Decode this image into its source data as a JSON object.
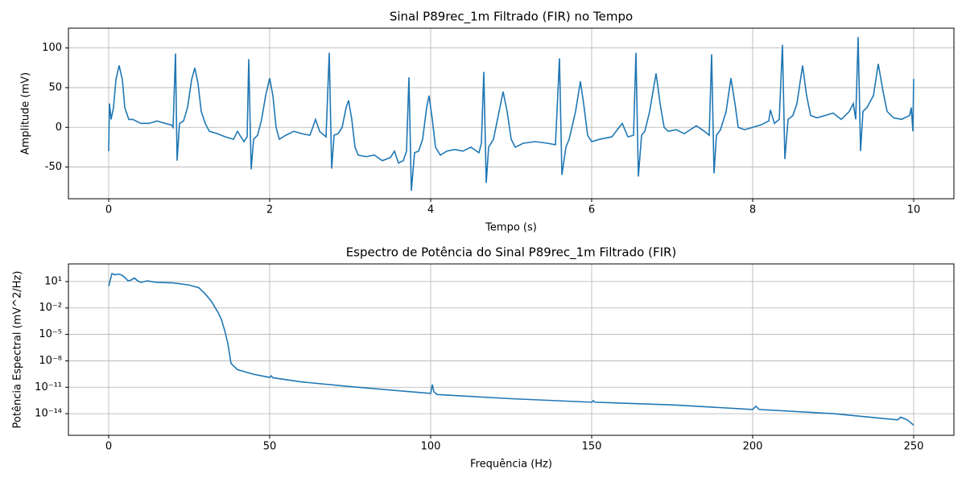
{
  "chart_data": [
    {
      "type": "line",
      "title": "Sinal P89rec_1m Filtrado (FIR) no Tempo",
      "x_label": "Tempo (s)",
      "y_label": "Amplitude (mV)",
      "xlim": [
        -0.5,
        10.5
      ],
      "ylim": [
        -90,
        125
      ],
      "xticks": [
        0,
        2,
        4,
        6,
        8,
        10
      ],
      "yticks": [
        -50,
        0,
        50,
        100
      ],
      "grid": true,
      "log_y": false,
      "series": [
        {
          "color": "#1f77b4",
          "x": [
            0,
            0.01,
            0.03,
            0.06,
            0.09,
            0.13,
            0.17,
            0.2,
            0.25,
            0.3,
            0.4,
            0.5,
            0.6,
            0.7,
            0.78,
            0.8,
            0.83,
            0.85,
            0.88,
            0.93,
            0.98,
            1.03,
            1.07,
            1.11,
            1.15,
            1.2,
            1.25,
            1.35,
            1.45,
            1.55,
            1.6,
            1.68,
            1.72,
            1.74,
            1.77,
            1.8,
            1.85,
            1.9,
            1.95,
            2.0,
            2.04,
            2.08,
            2.12,
            2.2,
            2.3,
            2.4,
            2.5,
            2.57,
            2.62,
            2.7,
            2.74,
            2.77,
            2.8,
            2.85,
            2.9,
            2.95,
            2.98,
            3.02,
            3.06,
            3.1,
            3.2,
            3.3,
            3.4,
            3.5,
            3.55,
            3.6,
            3.66,
            3.7,
            3.73,
            3.76,
            3.8,
            3.85,
            3.9,
            3.95,
            3.98,
            4.02,
            4.06,
            4.12,
            4.2,
            4.3,
            4.4,
            4.5,
            4.6,
            4.63,
            4.66,
            4.69,
            4.72,
            4.78,
            4.85,
            4.9,
            4.95,
            5.0,
            5.05,
            5.15,
            5.3,
            5.45,
            5.55,
            5.6,
            5.63,
            5.68,
            5.72,
            5.8,
            5.86,
            5.9,
            5.95,
            6.0,
            6.1,
            6.25,
            6.38,
            6.45,
            6.52,
            6.55,
            6.58,
            6.62,
            6.66,
            6.72,
            6.8,
            6.85,
            6.9,
            6.95,
            7.05,
            7.15,
            7.3,
            7.4,
            7.46,
            7.49,
            7.52,
            7.55,
            7.6,
            7.67,
            7.73,
            7.78,
            7.82,
            7.9,
            8.0,
            8.1,
            8.2,
            8.22,
            8.27,
            8.33,
            8.37,
            8.4,
            8.44,
            8.5,
            8.55,
            8.62,
            8.67,
            8.72,
            8.8,
            8.9,
            9.0,
            9.1,
            9.2,
            9.25,
            9.28,
            9.31,
            9.34,
            9.37,
            9.42,
            9.5,
            9.56,
            9.62,
            9.67,
            9.75,
            9.85,
            9.95,
            9.97,
            9.99,
            10.0
          ],
          "values": [
            -30,
            30,
            10,
            25,
            60,
            78,
            60,
            25,
            10,
            10,
            5,
            5,
            8,
            5,
            3,
            0,
            93,
            -42,
            5,
            8,
            25,
            60,
            75,
            55,
            20,
            5,
            -5,
            -8,
            -12,
            -15,
            -5,
            -18,
            -12,
            86,
            -53,
            -15,
            -10,
            10,
            40,
            62,
            40,
            0,
            -15,
            -10,
            -5,
            -8,
            -10,
            10,
            -5,
            -12,
            94,
            -52,
            -10,
            -8,
            0,
            25,
            34,
            10,
            -25,
            -35,
            -37,
            -35,
            -42,
            -38,
            -30,
            -45,
            -42,
            -30,
            63,
            -80,
            -32,
            -30,
            -15,
            25,
            40,
            10,
            -25,
            -35,
            -30,
            -28,
            -30,
            -25,
            -32,
            -20,
            70,
            -70,
            -25,
            -15,
            20,
            45,
            20,
            -15,
            -25,
            -20,
            -18,
            -20,
            -22,
            87,
            -60,
            -25,
            -15,
            20,
            58,
            30,
            -10,
            -18,
            -15,
            -12,
            5,
            -12,
            -10,
            94,
            -62,
            -10,
            -5,
            20,
            68,
            30,
            0,
            -5,
            -3,
            -8,
            2,
            -5,
            -10,
            92,
            -58,
            -10,
            -3,
            20,
            62,
            30,
            0,
            -3,
            0,
            3,
            8,
            22,
            5,
            10,
            104,
            -40,
            10,
            15,
            30,
            78,
            40,
            15,
            12,
            15,
            18,
            10,
            20,
            30,
            10,
            114,
            -30,
            20,
            25,
            40,
            80,
            45,
            20,
            12,
            10,
            15,
            25,
            -5,
            61
          ]
        }
      ]
    },
    {
      "type": "line",
      "title": "Espectro de Potência do Sinal P89rec_1m Filtrado (FIR)",
      "x_label": "Frequência (Hz)",
      "y_label": "Potência Espectral (mV^2/Hz)",
      "xlim": [
        -12.5,
        262.5
      ],
      "ylim": [
        3.5e-17,
        1000
      ],
      "xticks": [
        0,
        50,
        100,
        150,
        200,
        250
      ],
      "yticks": [
        {
          "value": 1e-14,
          "label": "10⁻¹⁴"
        },
        {
          "value": 1e-11,
          "label": "10⁻¹¹"
        },
        {
          "value": 1e-08,
          "label": "10⁻⁸"
        },
        {
          "value": 1e-05,
          "label": "10⁻⁵"
        },
        {
          "value": 0.01,
          "label": "10⁻²"
        },
        {
          "value": 10,
          "label": "10¹"
        }
      ],
      "grid": true,
      "log_y": true,
      "series": [
        {
          "color": "#1f77b4",
          "x": [
            0,
            1,
            2,
            3,
            4,
            5,
            6,
            7,
            8,
            9,
            10,
            12,
            15,
            20,
            25,
            28,
            30,
            32,
            34,
            35,
            36,
            37,
            38,
            40,
            45,
            50,
            50.5,
            51,
            60,
            75,
            90,
            100,
            100.5,
            101,
            102,
            125,
            150,
            150.5,
            151,
            175,
            200,
            201,
            202,
            225,
            245,
            246,
            248,
            250
          ],
          "values": [
            3,
            80,
            60,
            70,
            55,
            30,
            12,
            15,
            25,
            12,
            8,
            12,
            8,
            7,
            4,
            2,
            0.4,
            0.05,
            0.003,
            0.0005,
            3e-05,
            1e-06,
            5e-09,
            1e-09,
            3e-10,
            1.3e-10,
            2e-10,
            1.2e-10,
            4e-11,
            1.2e-11,
            4e-12,
            2e-12,
            2e-11,
            3e-12,
            1.5e-12,
            5e-13,
            2e-13,
            3e-13,
            2e-13,
            1e-13,
            3e-14,
            7e-14,
            3e-14,
            1e-14,
            2e-15,
            4e-15,
            2e-15,
            5e-16
          ]
        }
      ]
    }
  ]
}
